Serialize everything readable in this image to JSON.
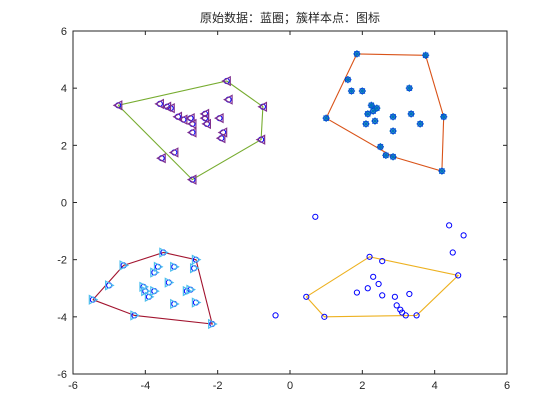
{
  "chart_data": {
    "type": "scatter",
    "title": "原始数据：蓝圈；簇样本点：图标",
    "xlabel": "",
    "ylabel": "",
    "xlim": [
      -6,
      6
    ],
    "ylim": [
      -6,
      6
    ],
    "x_ticks": [
      "-6",
      "-4",
      "-2",
      "0",
      "2",
      "4",
      "6"
    ],
    "y_ticks": [
      "6",
      "4",
      "2",
      "0",
      "-2",
      "-4",
      "-6"
    ],
    "grid": false,
    "colors": {
      "raw": "#0000ff",
      "cluster_green": "#77ac30",
      "cluster_orange": "#d95319",
      "cluster_darkred": "#a2142f",
      "cluster_yellow": "#edb120",
      "marker_purple": "#7e2f8e",
      "marker_blue": "#0072bd",
      "marker_lightblue": "#4dbeee",
      "axis": "#262626"
    },
    "series": [
      {
        "role": "raw-data",
        "marker": "circle",
        "points": [
          [
            -4.75,
            3.4
          ],
          [
            -3.6,
            3.45
          ],
          [
            -3.4,
            3.35
          ],
          [
            -3.3,
            3.3
          ],
          [
            -3.1,
            3.0
          ],
          [
            -2.95,
            2.9
          ],
          [
            -2.75,
            2.95
          ],
          [
            -2.7,
            2.75
          ],
          [
            -2.35,
            2.95
          ],
          [
            -2.35,
            3.1
          ],
          [
            -2.3,
            2.75
          ],
          [
            -1.95,
            2.95
          ],
          [
            -1.85,
            2.45
          ],
          [
            -1.75,
            4.25
          ],
          [
            -1.7,
            3.6
          ],
          [
            -0.75,
            3.35
          ],
          [
            -0.8,
            2.2
          ],
          [
            -2.7,
            2.45
          ],
          [
            -3.55,
            1.55
          ],
          [
            -3.2,
            1.75
          ],
          [
            -2.7,
            0.8
          ],
          [
            -1.9,
            2.25
          ],
          [
            1.85,
            5.2
          ],
          [
            3.75,
            5.15
          ],
          [
            1.6,
            4.3
          ],
          [
            1.7,
            3.9
          ],
          [
            2.0,
            3.9
          ],
          [
            1.0,
            2.95
          ],
          [
            2.15,
            3.1
          ],
          [
            2.25,
            3.4
          ],
          [
            2.3,
            3.2
          ],
          [
            2.4,
            3.3
          ],
          [
            2.35,
            2.85
          ],
          [
            2.1,
            2.75
          ],
          [
            2.85,
            3.0
          ],
          [
            2.85,
            2.5
          ],
          [
            3.35,
            3.1
          ],
          [
            3.3,
            4.0
          ],
          [
            3.6,
            2.75
          ],
          [
            4.25,
            3.0
          ],
          [
            2.5,
            1.95
          ],
          [
            2.65,
            1.65
          ],
          [
            2.85,
            1.6
          ],
          [
            4.2,
            1.1
          ],
          [
            -5.45,
            -3.4
          ],
          [
            -5.0,
            -2.9
          ],
          [
            -4.6,
            -2.2
          ],
          [
            -4.3,
            -3.95
          ],
          [
            -4.05,
            -2.95
          ],
          [
            -4.0,
            -3.1
          ],
          [
            -3.9,
            -3.3
          ],
          [
            -3.75,
            -3.1
          ],
          [
            -3.75,
            -2.45
          ],
          [
            -3.65,
            -2.25
          ],
          [
            -3.5,
            -1.75
          ],
          [
            -3.35,
            -2.8
          ],
          [
            -3.2,
            -3.55
          ],
          [
            -3.2,
            -2.25
          ],
          [
            -2.85,
            -3.1
          ],
          [
            -2.75,
            -3.05
          ],
          [
            -2.6,
            -2.0
          ],
          [
            -2.6,
            -3.5
          ],
          [
            -2.15,
            -4.25
          ],
          [
            -2.65,
            -2.3
          ],
          [
            0.7,
            -0.5
          ],
          [
            -0.4,
            -3.95
          ],
          [
            4.4,
            -0.8
          ],
          [
            4.8,
            -1.15
          ],
          [
            4.5,
            -1.75
          ],
          [
            2.2,
            -1.9
          ],
          [
            2.55,
            -2.05
          ],
          [
            2.3,
            -2.6
          ],
          [
            2.45,
            -2.85
          ],
          [
            1.85,
            -3.15
          ],
          [
            2.15,
            -3.0
          ],
          [
            2.55,
            -3.25
          ],
          [
            2.9,
            -3.3
          ],
          [
            3.3,
            -3.2
          ],
          [
            2.95,
            -3.6
          ],
          [
            3.05,
            -3.75
          ],
          [
            3.2,
            -3.95
          ],
          [
            3.1,
            -3.85
          ],
          [
            3.5,
            -3.95
          ],
          [
            0.95,
            -4.0
          ],
          [
            0.45,
            -3.3
          ],
          [
            4.65,
            -2.55
          ]
        ]
      },
      {
        "role": "cluster-points",
        "marker": "triangle-left",
        "points": [
          [
            -4.75,
            3.4
          ],
          [
            -3.6,
            3.45
          ],
          [
            -3.4,
            3.35
          ],
          [
            -3.3,
            3.3
          ],
          [
            -3.1,
            3.0
          ],
          [
            -2.95,
            2.9
          ],
          [
            -2.75,
            2.95
          ],
          [
            -2.7,
            2.75
          ],
          [
            -2.35,
            2.95
          ],
          [
            -2.35,
            3.1
          ],
          [
            -2.3,
            2.75
          ],
          [
            -1.95,
            2.95
          ],
          [
            -1.85,
            2.45
          ],
          [
            -1.75,
            4.25
          ],
          [
            -1.7,
            3.6
          ],
          [
            -0.75,
            3.35
          ],
          [
            -0.8,
            2.2
          ],
          [
            -2.7,
            2.45
          ],
          [
            -3.55,
            1.55
          ],
          [
            -3.2,
            1.75
          ],
          [
            -2.7,
            0.8
          ],
          [
            -1.9,
            2.25
          ]
        ]
      },
      {
        "role": "cluster-points",
        "marker": "star",
        "points": [
          [
            1.85,
            5.2
          ],
          [
            3.75,
            5.15
          ],
          [
            1.6,
            4.3
          ],
          [
            1.7,
            3.9
          ],
          [
            2.0,
            3.9
          ],
          [
            1.0,
            2.95
          ],
          [
            2.15,
            3.1
          ],
          [
            2.25,
            3.4
          ],
          [
            2.3,
            3.2
          ],
          [
            2.4,
            3.3
          ],
          [
            2.35,
            2.85
          ],
          [
            2.1,
            2.75
          ],
          [
            2.85,
            3.0
          ],
          [
            2.85,
            2.5
          ],
          [
            3.35,
            3.1
          ],
          [
            3.3,
            4.0
          ],
          [
            3.6,
            2.75
          ],
          [
            4.25,
            3.0
          ],
          [
            2.5,
            1.95
          ],
          [
            2.65,
            1.65
          ],
          [
            2.85,
            1.6
          ],
          [
            4.2,
            1.1
          ]
        ]
      },
      {
        "role": "cluster-points",
        "marker": "triangle-right",
        "points": [
          [
            -5.45,
            -3.4
          ],
          [
            -5.0,
            -2.9
          ],
          [
            -4.6,
            -2.2
          ],
          [
            -4.3,
            -3.95
          ],
          [
            -4.05,
            -2.95
          ],
          [
            -4.0,
            -3.1
          ],
          [
            -3.9,
            -3.3
          ],
          [
            -3.75,
            -3.1
          ],
          [
            -3.75,
            -2.45
          ],
          [
            -3.65,
            -2.25
          ],
          [
            -3.5,
            -1.75
          ],
          [
            -3.35,
            -2.8
          ],
          [
            -3.2,
            -3.55
          ],
          [
            -3.2,
            -2.25
          ],
          [
            -2.85,
            -3.1
          ],
          [
            -2.75,
            -3.05
          ],
          [
            -2.6,
            -2.0
          ],
          [
            -2.6,
            -3.5
          ],
          [
            -2.15,
            -4.25
          ],
          [
            -2.65,
            -2.3
          ]
        ]
      }
    ],
    "hulls": [
      {
        "points": [
          [
            -4.75,
            3.4
          ],
          [
            -1.75,
            4.25
          ],
          [
            -0.75,
            3.35
          ],
          [
            -0.8,
            2.2
          ],
          [
            -2.7,
            0.8
          ],
          [
            -4.75,
            3.4
          ]
        ]
      },
      {
        "points": [
          [
            1.85,
            5.2
          ],
          [
            3.75,
            5.15
          ],
          [
            4.25,
            3.0
          ],
          [
            4.2,
            1.1
          ],
          [
            2.85,
            1.6
          ],
          [
            1.0,
            2.95
          ],
          [
            1.85,
            5.2
          ]
        ]
      },
      {
        "points": [
          [
            -5.45,
            -3.4
          ],
          [
            -4.6,
            -2.2
          ],
          [
            -3.5,
            -1.75
          ],
          [
            -2.6,
            -2.0
          ],
          [
            -2.15,
            -4.25
          ],
          [
            -4.3,
            -3.95
          ],
          [
            -5.45,
            -3.4
          ]
        ]
      },
      {
        "points": [
          [
            0.45,
            -3.3
          ],
          [
            2.2,
            -1.9
          ],
          [
            4.65,
            -2.55
          ],
          [
            3.5,
            -3.95
          ],
          [
            0.95,
            -4.0
          ],
          [
            0.45,
            -3.3
          ]
        ]
      }
    ]
  }
}
